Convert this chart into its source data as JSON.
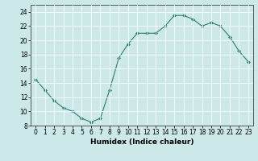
{
  "x": [
    0,
    1,
    2,
    3,
    4,
    5,
    6,
    7,
    8,
    9,
    10,
    11,
    12,
    13,
    14,
    15,
    16,
    17,
    18,
    19,
    20,
    21,
    22,
    23
  ],
  "y": [
    14.5,
    13.0,
    11.5,
    10.5,
    10.0,
    9.0,
    8.5,
    9.0,
    13.0,
    17.5,
    19.5,
    21.0,
    21.0,
    21.0,
    22.0,
    23.5,
    23.5,
    23.0,
    22.0,
    22.5,
    22.0,
    20.5,
    18.5,
    17.0
  ],
  "line_color": "#2e7d6e",
  "marker": "D",
  "marker_size": 2.0,
  "bg_color": "#cce8e8",
  "grid_color": "#b0d8d8",
  "xlabel": "Humidex (Indice chaleur)",
  "xlim": [
    -0.5,
    23.5
  ],
  "ylim": [
    8,
    25
  ],
  "yticks": [
    8,
    10,
    12,
    14,
    16,
    18,
    20,
    22,
    24
  ],
  "xticks": [
    0,
    1,
    2,
    3,
    4,
    5,
    6,
    7,
    8,
    9,
    10,
    11,
    12,
    13,
    14,
    15,
    16,
    17,
    18,
    19,
    20,
    21,
    22,
    23
  ],
  "label_fontsize": 6.5,
  "tick_fontsize": 5.5
}
